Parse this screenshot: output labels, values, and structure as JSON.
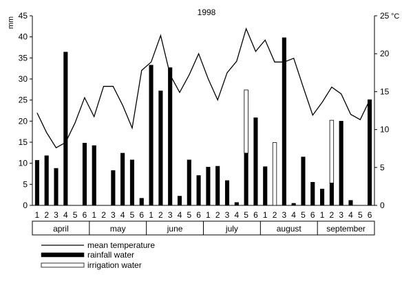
{
  "chart_data": {
    "type": "bar",
    "title": "1998",
    "ylabel_left": "mm",
    "ylabel_right_value": "25",
    "ylabel_right_unit": "°C",
    "left_axis": {
      "min": 0,
      "max": 45,
      "step": 5,
      "tick_labels": [
        "0",
        "5",
        "10",
        "15",
        "20",
        "25",
        "30",
        "35",
        "40",
        "45"
      ]
    },
    "right_axis": {
      "min": 0,
      "max": 25,
      "tick_labels": [
        "0",
        "5",
        "10",
        "15",
        "20"
      ]
    },
    "categories": [
      "1",
      "2",
      "3",
      "4",
      "5",
      "6",
      "1",
      "2",
      "3",
      "4",
      "5",
      "6",
      "1",
      "2",
      "3",
      "4",
      "5",
      "6",
      "1",
      "2",
      "3",
      "4",
      "5",
      "6",
      "1",
      "2",
      "3",
      "4",
      "5",
      "6",
      "1",
      "2",
      "3",
      "4",
      "5",
      "6"
    ],
    "months": [
      "april",
      "may",
      "june",
      "july",
      "august",
      "september"
    ],
    "series": [
      {
        "name": "mean temperature",
        "kind": "line",
        "axis": "right",
        "color": "#000000",
        "values": [
          12.2,
          9.6,
          7.6,
          8.3,
          10.9,
          14.2,
          11.7,
          15.7,
          15.7,
          13.2,
          10.2,
          17.8,
          18.9,
          22.4,
          17.2,
          14.9,
          17.2,
          20.0,
          16.7,
          13.9,
          17.5,
          19.0,
          23.3,
          20.3,
          21.8,
          18.9,
          18.9,
          19.4,
          15.6,
          11.9,
          13.6,
          15.6,
          14.7,
          12.0,
          11.3,
          13.9
        ]
      },
      {
        "name": "rainfall water",
        "kind": "bar",
        "axis": "left",
        "color": "#000000",
        "values": [
          10.7,
          11.8,
          8.8,
          36.4,
          0,
          14.8,
          14.2,
          0,
          8.3,
          12.4,
          10.8,
          1.7,
          33.3,
          27.2,
          32.7,
          2.2,
          10.8,
          7.1,
          9.1,
          9.3,
          5.9,
          0.7,
          12.4,
          20.8,
          9.2,
          0,
          39.8,
          0.5,
          11.5,
          5.5,
          3.9,
          5.3,
          20.0,
          1.2,
          0,
          25.1
        ]
      },
      {
        "name": "irrigation water",
        "kind": "bar",
        "axis": "left",
        "color": "#ffffff",
        "values": [
          0,
          0,
          0,
          0,
          0,
          0,
          0,
          0,
          0,
          0,
          0,
          0,
          0,
          0,
          0,
          0,
          0,
          0,
          0,
          0,
          0,
          0,
          15.0,
          0,
          0,
          14.9,
          0,
          0,
          0,
          0,
          0,
          14.9,
          0,
          0,
          0,
          0
        ]
      }
    ],
    "legend_position": "bottom-left",
    "grid": false
  }
}
